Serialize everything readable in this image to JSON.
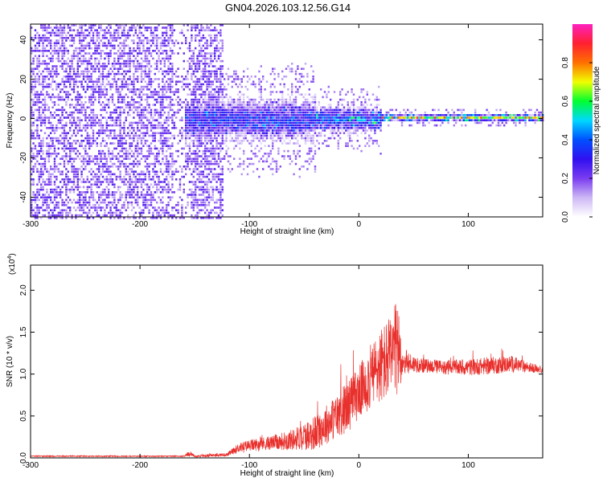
{
  "title": "GN04.2026.103.12.56.G14",
  "chart_data": [
    {
      "type": "heatmap",
      "xlabel": "Height of straight line (km)",
      "ylabel": "Frequency (Hz)",
      "xlim": [
        -300,
        168
      ],
      "ylim": [
        -50,
        48
      ],
      "xticks": [
        -300,
        -200,
        -100,
        0,
        100
      ],
      "yticks": [
        -40,
        -20,
        0,
        20,
        40
      ],
      "colorbar": {
        "label": "Normalized spectral amplitude",
        "range": [
          0.0,
          1.0
        ],
        "ticks": [
          0.0,
          0.2,
          0.4,
          0.6,
          0.8
        ],
        "colormap": [
          "#ffffff",
          "#cdb8f5",
          "#7a3cf0",
          "#3010f0",
          "#0050ff",
          "#00d8ff",
          "#00ff30",
          "#f0ff00",
          "#ff7000",
          "#ff2030",
          "#ff20c0"
        ]
      },
      "regions": [
        {
          "x_range": [
            -300,
            -125
          ],
          "description": "broadband scattered noise across all frequencies"
        },
        {
          "x_range": [
            -160,
            -40
          ],
          "freq_halfwidth_hz": 12,
          "peak_amplitude": 0.45
        },
        {
          "x_range": [
            -40,
            20
          ],
          "freq_halfwidth_hz": 7,
          "peak_amplitude": 0.6
        },
        {
          "x_range": [
            20,
            168
          ],
          "freq_halfwidth_hz": 2,
          "center_freq_hz": 1,
          "peak_amplitude": 0.95
        }
      ]
    },
    {
      "type": "line",
      "xlabel": "Height of straight line (km)",
      "ylabel": "SNR (10 * v/v)",
      "y_multiplier": "(x10^4)",
      "multiplier_base": "(x10",
      "multiplier_exp": "4",
      "multiplier_close": ")",
      "xlim": [
        -300,
        168
      ],
      "ylim": [
        0,
        2.3
      ],
      "xticks": [
        -300,
        -200,
        -100,
        0,
        100
      ],
      "yticks": [
        0.0,
        0.5,
        1.0,
        1.5,
        2.0
      ],
      "series_color": "#e8302c",
      "envelope": {
        "x": [
          -300,
          -160,
          -155,
          -150,
          -120,
          -110,
          -100,
          -80,
          -60,
          -40,
          -20,
          -10,
          0,
          10,
          20,
          30,
          35,
          40,
          50,
          60,
          80,
          100,
          120,
          140,
          168
        ],
        "center": [
          0.02,
          0.02,
          0.05,
          0.02,
          0.04,
          0.12,
          0.15,
          0.18,
          0.22,
          0.3,
          0.5,
          0.62,
          0.78,
          0.95,
          1.1,
          1.2,
          1.3,
          1.15,
          1.12,
          1.1,
          1.08,
          1.08,
          1.1,
          1.12,
          1.05
        ],
        "amplitude": [
          0.01,
          0.01,
          0.05,
          0.02,
          0.03,
          0.08,
          0.1,
          0.12,
          0.18,
          0.3,
          0.38,
          0.45,
          0.45,
          0.55,
          0.65,
          0.75,
          0.85,
          0.25,
          0.15,
          0.12,
          0.12,
          0.14,
          0.15,
          0.14,
          0.05
        ]
      }
    }
  ]
}
